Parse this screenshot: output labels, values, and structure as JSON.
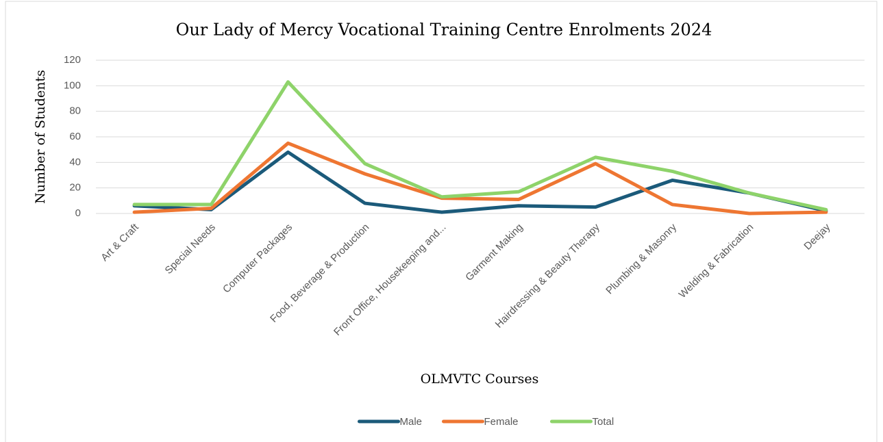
{
  "chart_data": {
    "type": "line",
    "title": "Our Lady of Mercy Vocational Training Centre Enrolments 2024",
    "x_label": "OLMVTC Courses",
    "y_label": "Number of Students",
    "categories": [
      "Art & Craft",
      "Special Needs",
      "Computer Packages",
      "Food, Beverage & Production",
      "Front Office, Housekeeping and...",
      "Garment Making",
      "Hairdressing & Beauty Therapy",
      "Plumbing & Masonry",
      "Welding & Fabrication",
      "Deejay"
    ],
    "series": [
      {
        "name": "Male",
        "color": "#1b5a7a",
        "values": [
          6,
          3,
          48,
          8,
          1,
          6,
          5,
          26,
          16,
          2
        ]
      },
      {
        "name": "Female",
        "color": "#ee7632",
        "values": [
          1,
          4,
          55,
          31,
          12,
          11,
          39,
          7,
          0,
          1
        ]
      },
      {
        "name": "Total",
        "color": "#8ed36a",
        "values": [
          7,
          7,
          103,
          39,
          13,
          17,
          44,
          33,
          16,
          3
        ]
      }
    ],
    "ylim": [
      0,
      120
    ],
    "yticks": [
      0,
      20,
      40,
      60,
      80,
      100,
      120
    ],
    "grid": true,
    "legend": "bottom"
  }
}
